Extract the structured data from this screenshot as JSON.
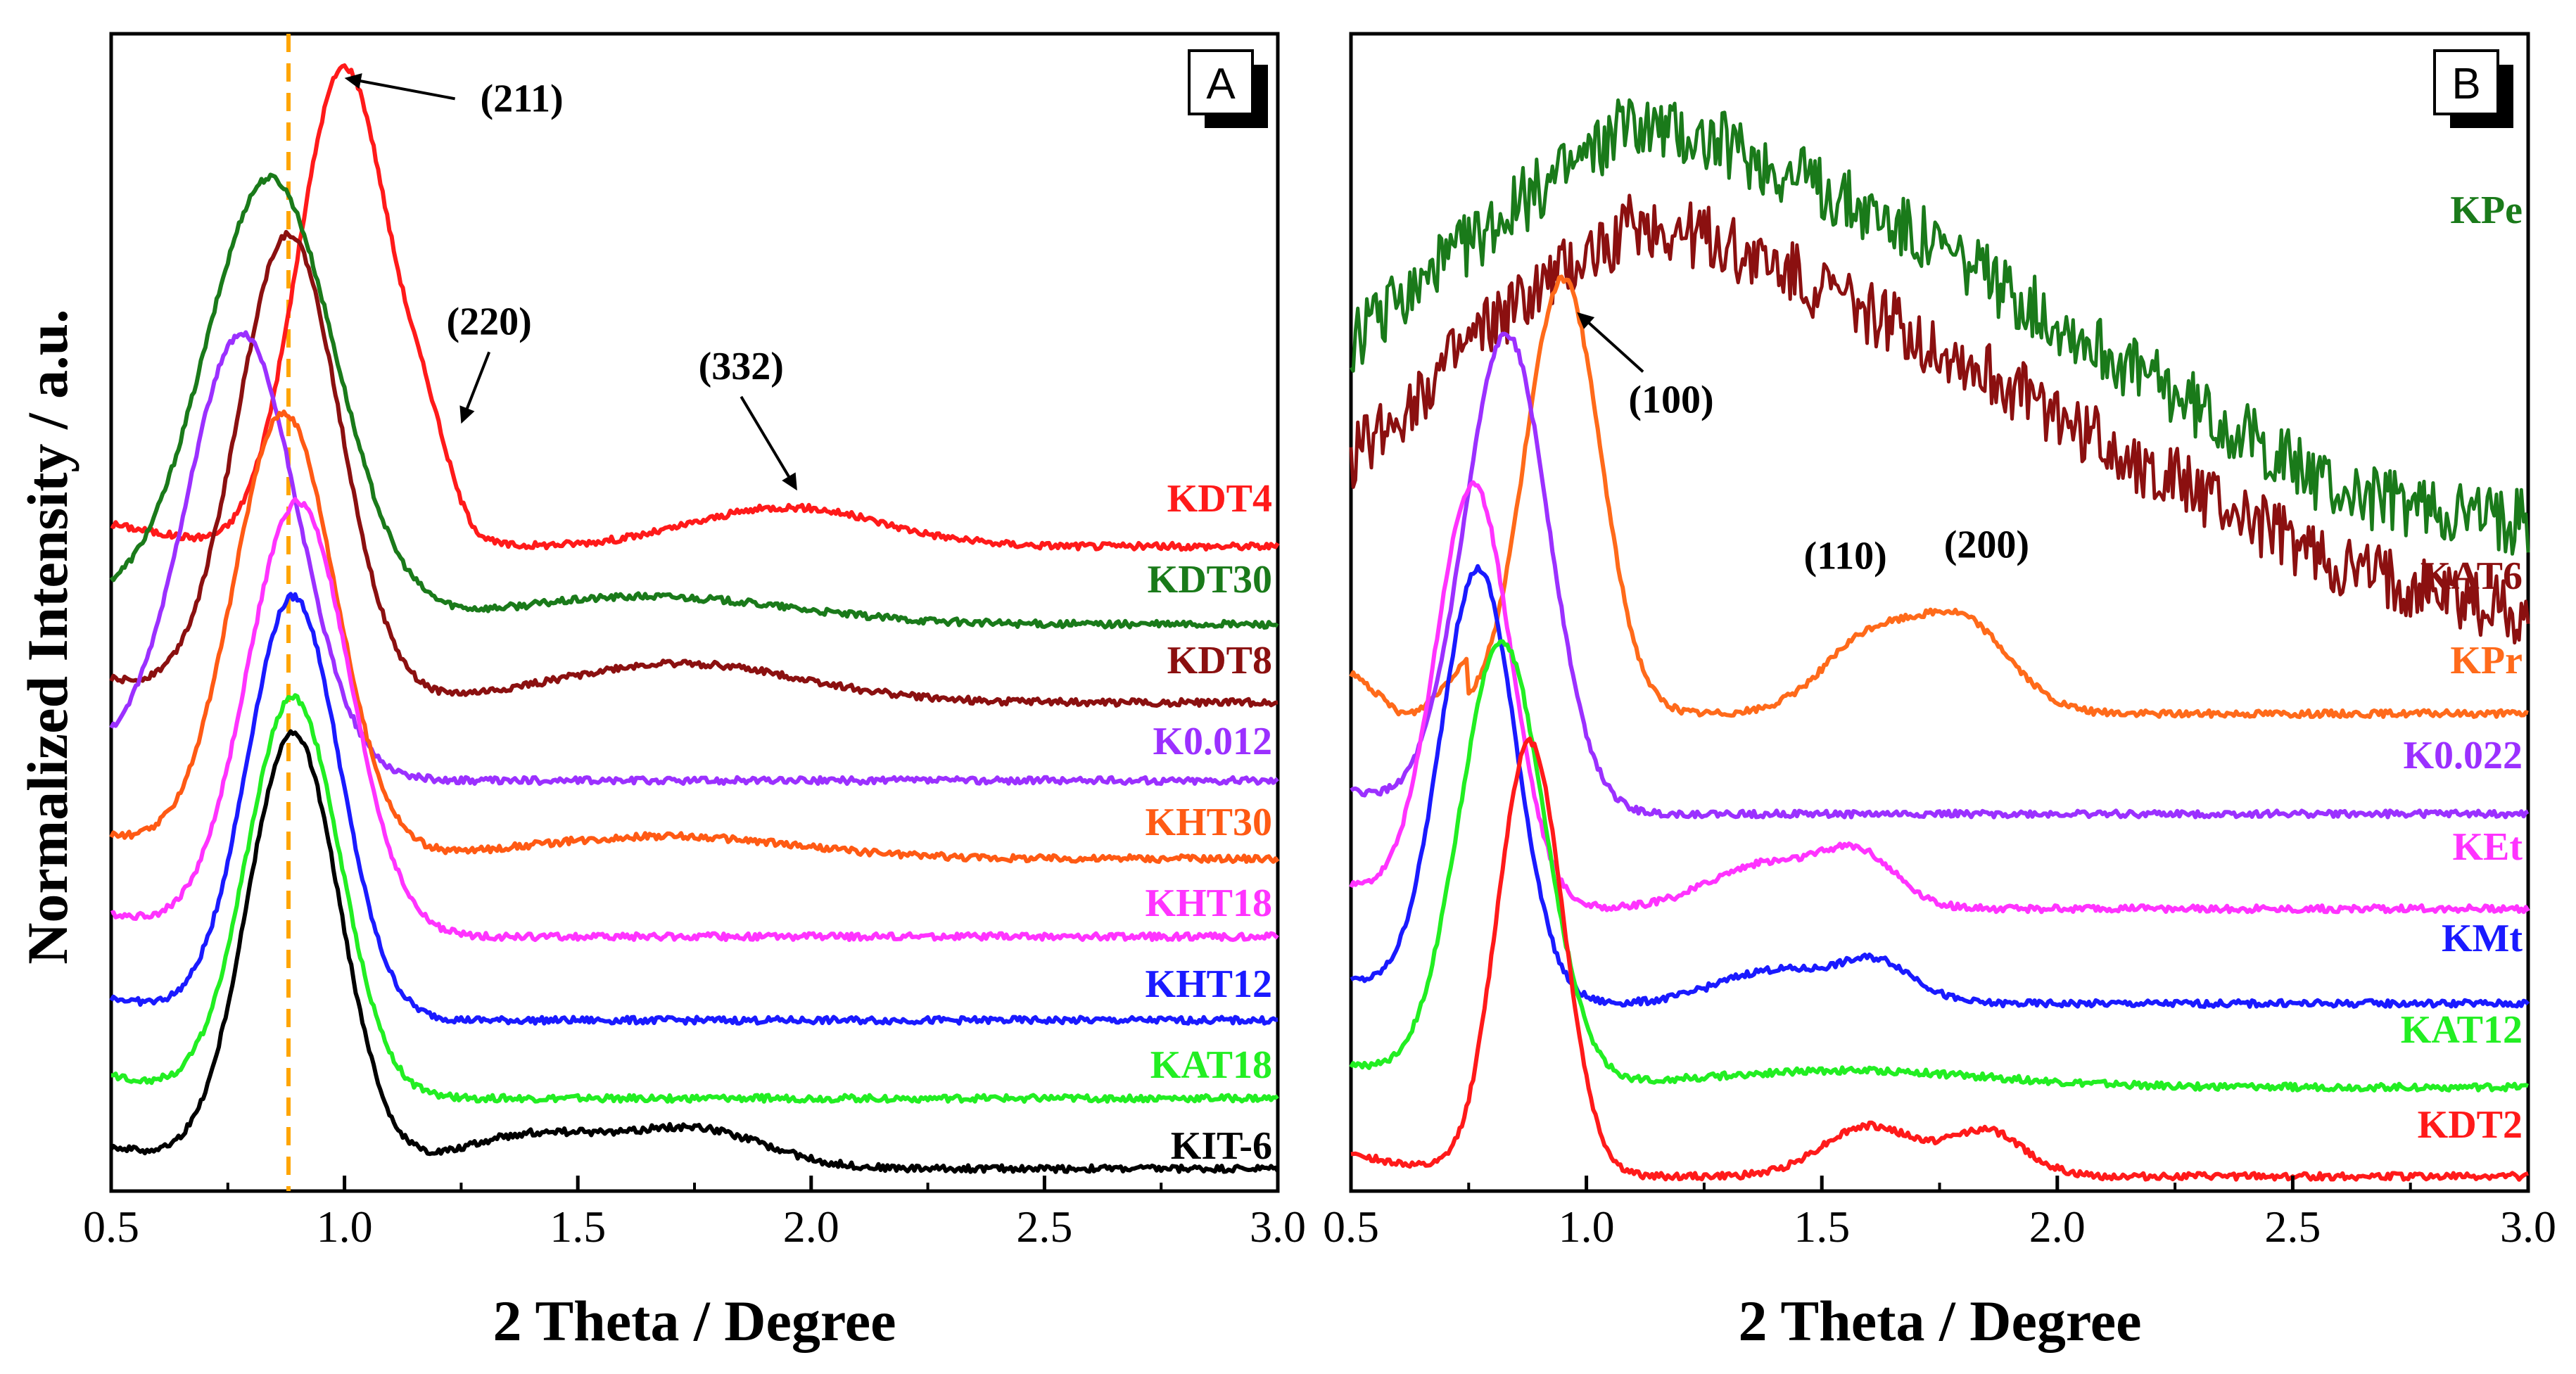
{
  "figure": {
    "ylabel": "Normalized Intensity / a.u.",
    "panel_colors": {
      "red": "#ff1a1a",
      "green": "#1a7a1a",
      "darkred": "#8b1010",
      "purple": "#9b30ff",
      "orange": "#ff5a14",
      "magenta": "#ff33ff",
      "blue": "#1a1aff",
      "lime": "#22ee22",
      "black": "#000000",
      "kpr_orange": "#ff6a1a",
      "guide": "#ffa500"
    }
  },
  "chart_data": [
    {
      "panel": "A",
      "type": "line",
      "xlabel": "2 Theta / Degree",
      "ylabel": "Normalized Intensity / a.u.",
      "xlim": [
        0.5,
        3.0
      ],
      "ylim": [
        0,
        100
      ],
      "xticks": [
        "0.5",
        "1.0",
        "1.5",
        "2.0",
        "2.5",
        "3.0"
      ],
      "reference_line": {
        "x": 0.88,
        "style": "dashed",
        "color": "#ffa500"
      },
      "series": [
        {
          "name": "KDT4",
          "color": "#ff1a1a",
          "baseline": 57,
          "peaks": [
            [
              1.0,
              43,
              0.1
            ],
            [
              1.18,
              6,
              0.05
            ],
            [
              1.95,
              3.5,
              0.2
            ]
          ]
        },
        {
          "name": "KDT30",
          "color": "#1a7a1a",
          "baseline": 50,
          "peaks": [
            [
              0.84,
              40,
              0.14
            ],
            [
              1.65,
              2.5,
              0.3
            ]
          ]
        },
        {
          "name": "KDT8",
          "color": "#8b1010",
          "baseline": 43,
          "peaks": [
            [
              0.88,
              42,
              0.11
            ],
            [
              1.72,
              3.5,
              0.26
            ]
          ]
        },
        {
          "name": "K0.012",
          "color": "#9b30ff",
          "baseline": 36,
          "peaks": [
            [
              0.78,
              40,
              0.12
            ]
          ]
        },
        {
          "name": "KHT30",
          "color": "#ff5a14",
          "baseline": 29,
          "peaks": [
            [
              0.87,
              40,
              0.11
            ],
            [
              1.68,
              2,
              0.28
            ]
          ]
        },
        {
          "name": "KHT18",
          "color": "#ff33ff",
          "baseline": 22,
          "peaks": [
            [
              0.9,
              39,
              0.11
            ]
          ]
        },
        {
          "name": "KHT12",
          "color": "#1a1aff",
          "baseline": 14.5,
          "peaks": [
            [
              0.89,
              38,
              0.1
            ]
          ]
        },
        {
          "name": "KAT18",
          "color": "#22ee22",
          "baseline": 7.5,
          "peaks": [
            [
              0.89,
              36,
              0.1
            ]
          ]
        },
        {
          "name": "KIT-6",
          "color": "#000000",
          "baseline": 1.2,
          "peaks": [
            [
              0.89,
              39,
              0.1
            ],
            [
              1.4,
              3,
              0.15
            ],
            [
              1.75,
              3.5,
              0.15
            ]
          ]
        }
      ],
      "annotations": [
        {
          "text": "(211)",
          "x": 1.0,
          "y": 99,
          "label_x": 1.38,
          "label_y": 96
        },
        {
          "text": "(220)",
          "x": 1.25,
          "y": 68,
          "label_x": 1.31,
          "label_y": 76
        },
        {
          "text": "(332)",
          "x": 1.97,
          "y": 62,
          "label_x": 1.85,
          "label_y": 72
        }
      ]
    },
    {
      "panel": "B",
      "type": "line",
      "xlabel": "2 Theta / Degree",
      "ylabel": "Normalized Intensity / a.u.",
      "xlim": [
        0.5,
        3.0
      ],
      "ylim": [
        0,
        100
      ],
      "xticks": [
        "0.5",
        "1.0",
        "1.5",
        "2.0",
        "2.5",
        "3.0"
      ],
      "series": [
        {
          "name": "KPe",
          "color": "#1a7a1a",
          "noisy": true,
          "points": [
            [
              0.5,
              75
            ],
            [
              0.8,
              86
            ],
            [
              1.1,
              95
            ],
            [
              1.3,
              93
            ],
            [
              1.7,
              85
            ],
            [
              2.2,
              72
            ],
            [
              2.6,
              62
            ],
            [
              3.0,
              59
            ]
          ]
        },
        {
          "name": "KAT6",
          "color": "#8b1010",
          "noisy": true,
          "points": [
            [
              0.5,
              65
            ],
            [
              0.8,
              77
            ],
            [
              1.1,
              86
            ],
            [
              1.3,
              84
            ],
            [
              1.7,
              76
            ],
            [
              2.2,
              64
            ],
            [
              2.6,
              55
            ],
            [
              3.0,
              51
            ]
          ]
        },
        {
          "name": "KPr",
          "color": "#ff6a1a",
          "baseline": 42,
          "peaks": [
            [
              0.95,
              39,
              0.08
            ],
            [
              1.6,
              6.5,
              0.1
            ],
            [
              1.8,
              8,
              0.1
            ]
          ],
          "extra": [
            [
              0.5,
              5
            ],
            [
              0.62,
              0
            ]
          ]
        },
        {
          "name": "K0.022",
          "color": "#9b30ff",
          "baseline": 33,
          "peaks": [
            [
              0.83,
              43,
              0.09
            ]
          ]
        },
        {
          "name": "KEt",
          "color": "#ff33ff",
          "baseline": 24.5,
          "peaks": [
            [
              0.76,
              38,
              0.08
            ],
            [
              1.38,
              4,
              0.12
            ],
            [
              1.58,
              4.5,
              0.08
            ]
          ]
        },
        {
          "name": "KMt",
          "color": "#1a1aff",
          "baseline": 16,
          "peaks": [
            [
              0.77,
              39,
              0.08
            ],
            [
              1.4,
              3,
              0.12
            ],
            [
              1.62,
              3.5,
              0.08
            ]
          ]
        },
        {
          "name": "KAT12",
          "color": "#22ee22",
          "baseline": 8.5,
          "peaks": [
            [
              0.82,
              40,
              0.09
            ],
            [
              1.55,
              1.5,
              0.3
            ]
          ]
        },
        {
          "name": "KDT2",
          "color": "#ff1a1a",
          "baseline": 0.5,
          "peaks": [
            [
              0.88,
              39,
              0.07
            ],
            [
              1.6,
              4.5,
              0.1
            ],
            [
              1.85,
              4,
              0.08
            ]
          ]
        }
      ],
      "annotations": [
        {
          "text": "(100)",
          "x": 0.98,
          "y": 78,
          "label_x": 1.18,
          "label_y": 69
        },
        {
          "text": "(110)",
          "x": 1.55,
          "y": 55,
          "label_x": 1.55,
          "label_y": 55
        },
        {
          "text": "(200)",
          "x": 1.85,
          "y": 56,
          "label_x": 1.85,
          "label_y": 56
        }
      ]
    }
  ],
  "labels_A": [
    "A",
    "KDT4",
    "KDT30",
    "KDT8",
    "K0.012",
    "KHT30",
    "KHT18",
    "KHT12",
    "KAT18",
    "KIT-6"
  ],
  "labels_B": [
    "B",
    "KPe",
    "KAT6",
    "KPr",
    "K0.022",
    "KEt",
    "KMt",
    "KAT12",
    "KDT2"
  ]
}
